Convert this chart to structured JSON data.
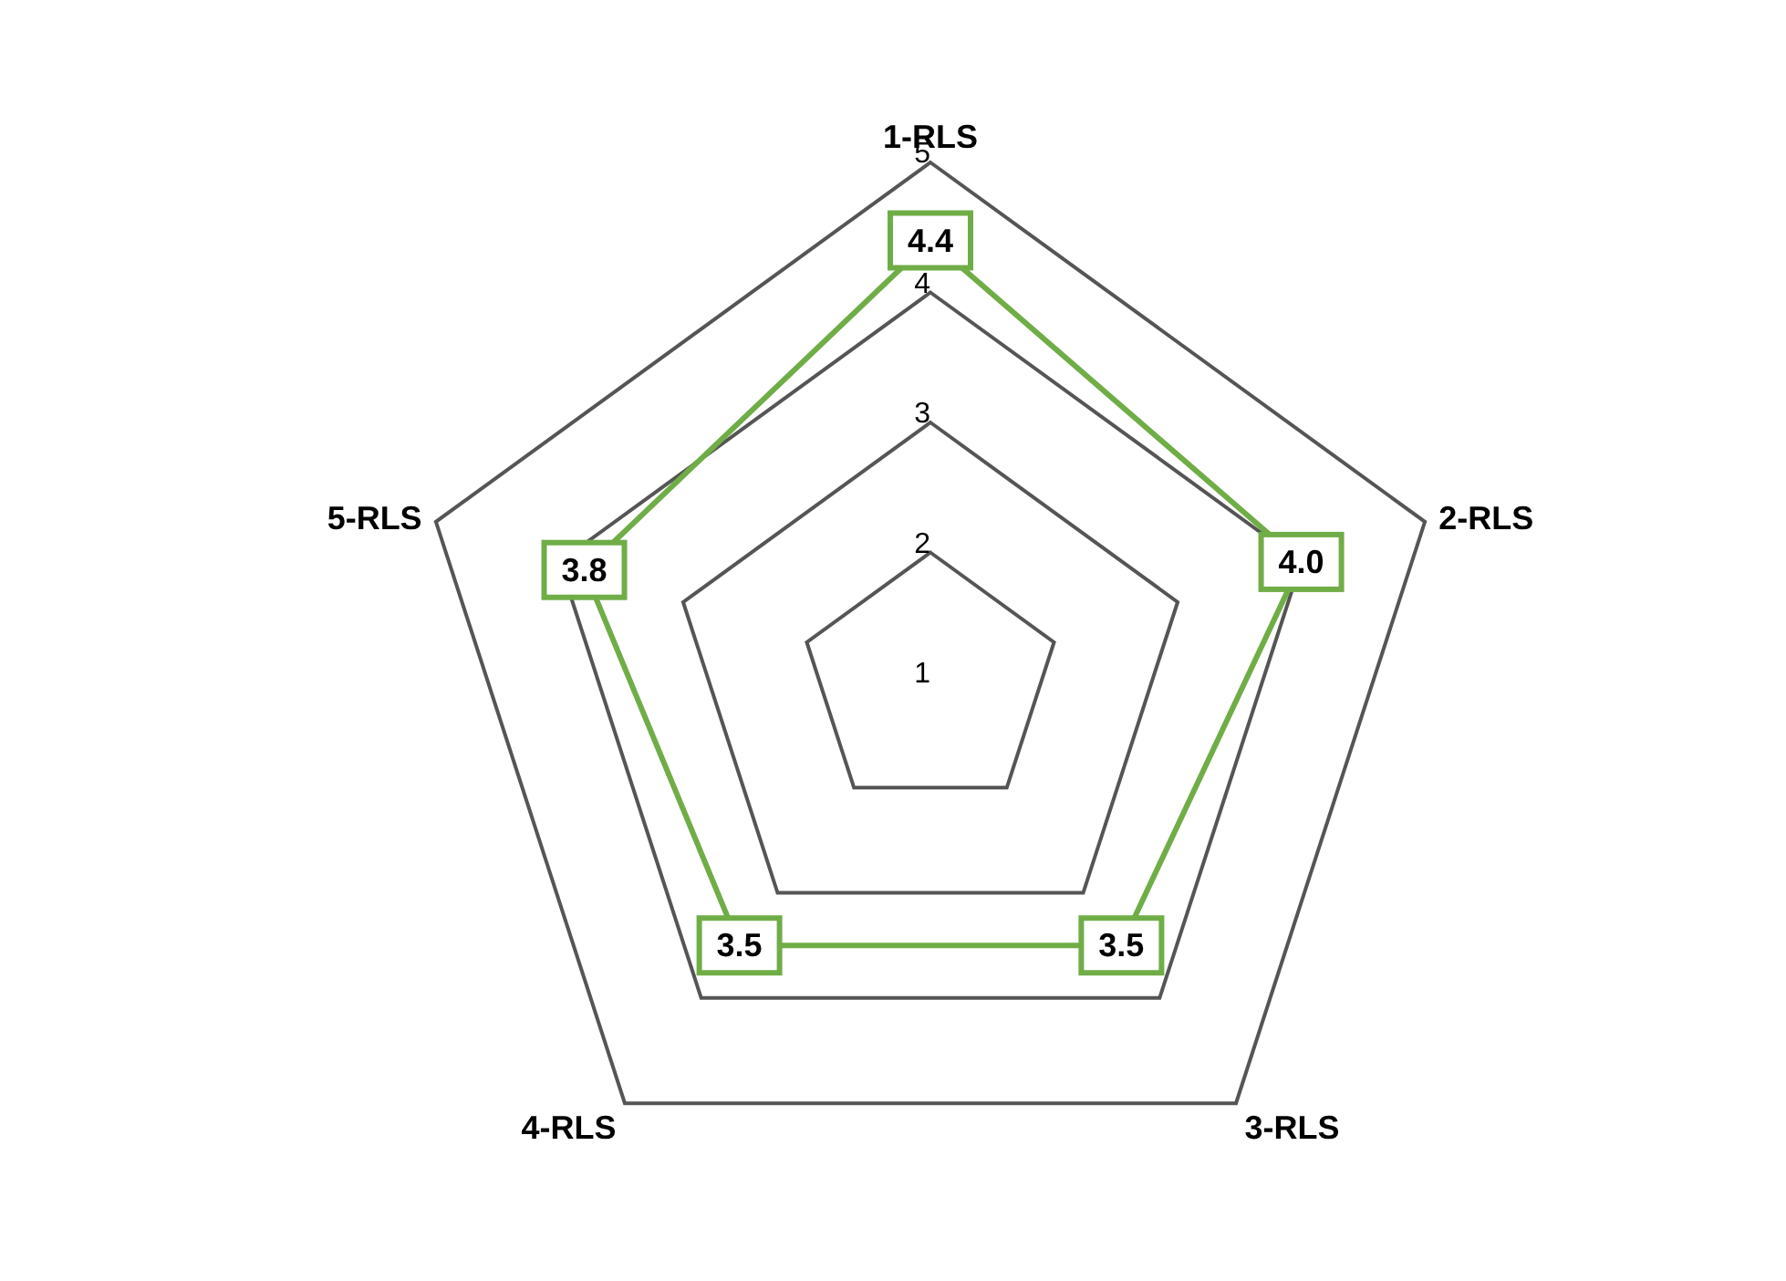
{
  "chart_data": {
    "type": "radar",
    "categories": [
      "1-RLS",
      "2-RLS",
      "3-RLS",
      "4-RLS",
      "5-RLS"
    ],
    "series": [
      {
        "color": "#70ad47",
        "values": [
          4.4,
          4.0,
          3.5,
          3.5,
          3.8
        ],
        "value_labels": [
          "4.4",
          "4.0",
          "3.5",
          "3.5",
          "3.8"
        ]
      }
    ],
    "ylim": [
      1,
      5
    ],
    "yticks": [
      1,
      2,
      3,
      4,
      5
    ],
    "grid": true,
    "legend": false
  }
}
